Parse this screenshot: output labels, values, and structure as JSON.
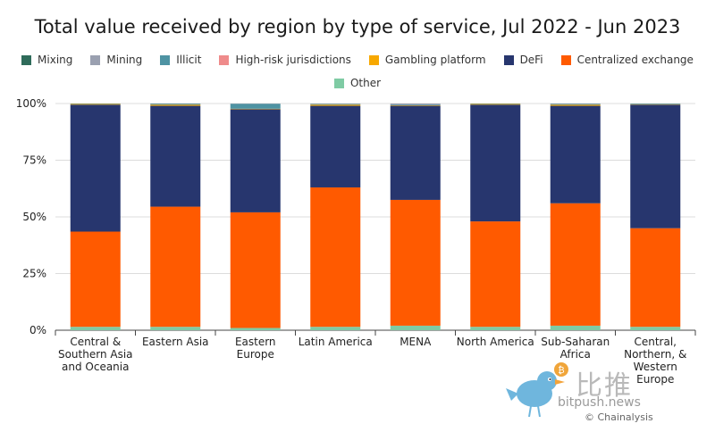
{
  "chart_data": {
    "type": "bar",
    "stacked": true,
    "title": "Total value received by region by type of service, Jul 2022 - Jun 2023",
    "ylim": [
      0,
      100
    ],
    "yticks": [
      0,
      25,
      50,
      75,
      100
    ],
    "ytick_suffix": "%",
    "categories": [
      "Central & Southern Asia and Oceania",
      "Eastern Asia",
      "Eastern Europe",
      "Latin America",
      "MENA",
      "North America",
      "Sub-Saharan Africa",
      "Central, Northern, & Western Europe"
    ],
    "category_lines": [
      [
        "Central &",
        "Southern Asia",
        "and Oceania"
      ],
      [
        "Eastern Asia"
      ],
      [
        "Eastern",
        "Europe"
      ],
      [
        "Latin America"
      ],
      [
        "MENA"
      ],
      [
        "North America"
      ],
      [
        "Sub-Saharan",
        "Africa"
      ],
      [
        "Central,",
        "Northern, &",
        "Western",
        "Europe"
      ]
    ],
    "series": [
      {
        "name": "Other",
        "color": "#7fcba4",
        "values": [
          1.5,
          1.5,
          1.0,
          1.5,
          2.0,
          1.5,
          2.0,
          1.5
        ]
      },
      {
        "name": "Centralized exchange",
        "color": "#ff5a00",
        "values": [
          42.0,
          53.0,
          51.0,
          61.5,
          55.5,
          46.5,
          54.0,
          43.5
        ]
      },
      {
        "name": "DeFi",
        "color": "#27366e",
        "values": [
          56.0,
          44.5,
          45.5,
          36.0,
          41.5,
          51.5,
          43.0,
          54.5
        ]
      },
      {
        "name": "Gambling platform",
        "color": "#f7a800",
        "values": [
          0.3,
          0.5,
          0.2,
          0.5,
          0.2,
          0.3,
          0.5,
          0.2
        ]
      },
      {
        "name": "High-risk jurisdictions",
        "color": "#ef8b8b",
        "values": [
          0.0,
          0.0,
          0.0,
          0.0,
          0.0,
          0.0,
          0.0,
          0.0
        ]
      },
      {
        "name": "Illicit",
        "color": "#4e93a3",
        "values": [
          0.2,
          0.3,
          2.2,
          0.2,
          0.3,
          0.2,
          0.3,
          0.3
        ]
      },
      {
        "name": "Mining",
        "color": "#9aa0b0",
        "values": [
          0.0,
          0.1,
          0.1,
          0.2,
          0.5,
          0.0,
          0.2,
          0.0
        ]
      },
      {
        "name": "Mixing",
        "color": "#2f6b5a",
        "values": [
          0.0,
          0.1,
          0.0,
          0.1,
          0.0,
          0.0,
          0.0,
          0.0
        ]
      }
    ],
    "legend_order": [
      "Mixing",
      "Mining",
      "Illicit",
      "High-risk jurisdictions",
      "Gambling platform",
      "DeFi",
      "Centralized exchange",
      "Other"
    ],
    "legend_position": "top"
  },
  "watermark": {
    "chinese_text": "比推",
    "url": "bitpush.news",
    "source": "© Chainalysis"
  }
}
